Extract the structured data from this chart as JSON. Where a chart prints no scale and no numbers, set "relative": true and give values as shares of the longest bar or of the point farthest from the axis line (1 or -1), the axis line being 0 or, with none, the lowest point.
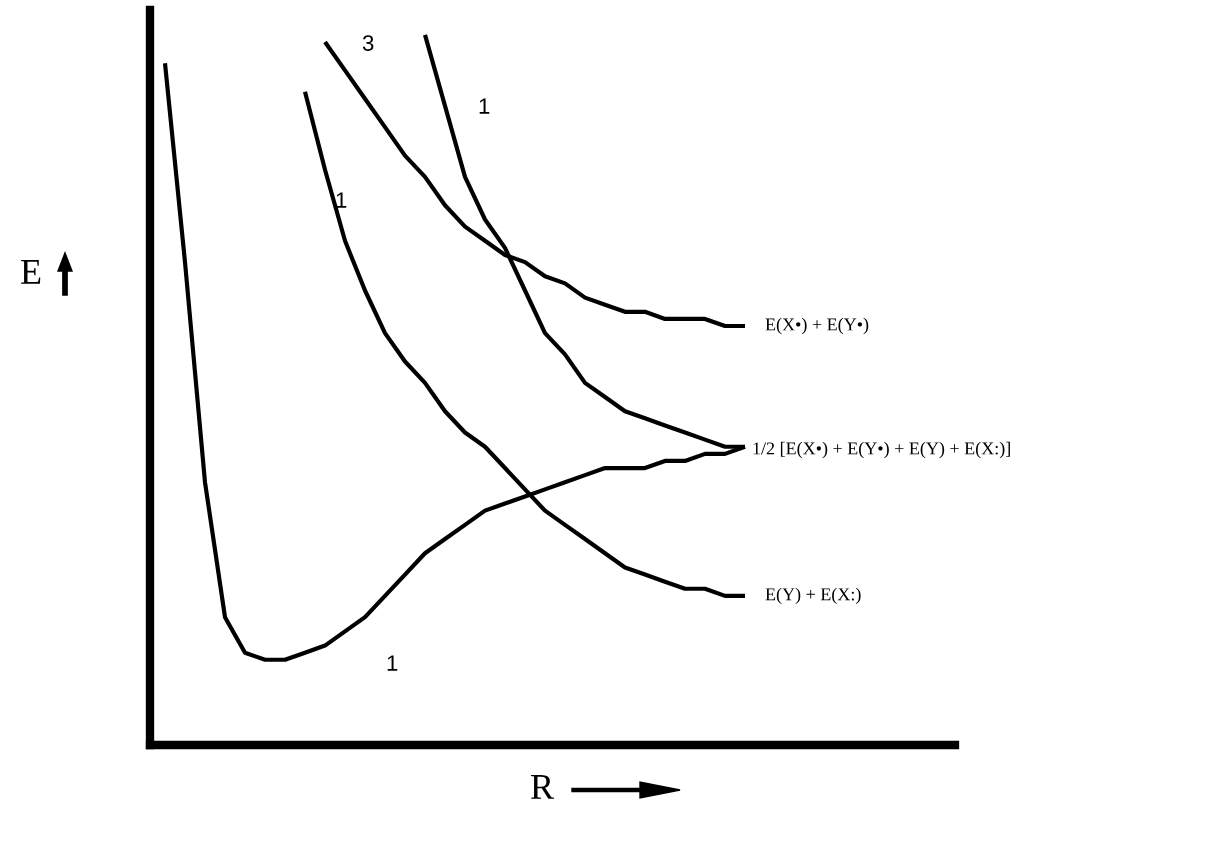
{
  "chart_data": {
    "type": "line",
    "relative": true,
    "xlabel": "R",
    "ylabel": "E",
    "legend": false,
    "marker": "none",
    "line_style": "solid",
    "categories": [
      null,
      null,
      null,
      null,
      null,
      null,
      null,
      null,
      null,
      null,
      null,
      null,
      null,
      null,
      null,
      null,
      null,
      null,
      null,
      null,
      null,
      null,
      null,
      null,
      null,
      null,
      null,
      null,
      null,
      null
    ],
    "series": [
      {
        "color": "#000000",
        "values": [
          0.96,
          0.68,
          0.37,
          0.18,
          0.13,
          0.12,
          0.12,
          0.13,
          0.14,
          0.16,
          0.18,
          0.21,
          0.24,
          0.27,
          0.29,
          0.31,
          0.33,
          0.34,
          0.35,
          0.36,
          0.37,
          0.38,
          0.39,
          0.39,
          0.39,
          0.4,
          0.4,
          0.41,
          0.41,
          0.42
        ]
      },
      {
        "name": "E(Y) + E(X:)",
        "color": "#000000",
        "values": [
          null,
          null,
          null,
          null,
          null,
          null,
          null,
          0.92,
          0.81,
          0.71,
          0.64,
          0.58,
          0.54,
          0.51,
          0.47,
          0.44,
          0.42,
          0.39,
          0.36,
          0.33,
          0.31,
          0.29,
          0.27,
          0.25,
          0.24,
          0.23,
          0.22,
          0.22,
          0.21,
          0.21
        ]
      },
      {
        "name": "E(X•) + E(Y•)",
        "color": "#000000",
        "values": [
          null,
          null,
          null,
          null,
          null,
          null,
          null,
          null,
          0.99,
          0.95,
          0.91,
          0.87,
          0.83,
          0.8,
          0.76,
          0.73,
          0.71,
          0.69,
          0.68,
          0.66,
          0.65,
          0.63,
          0.62,
          0.61,
          0.61,
          0.6,
          0.6,
          0.6,
          0.59,
          0.59
        ]
      },
      {
        "color": "#000000",
        "values": [
          null,
          null,
          null,
          null,
          null,
          null,
          null,
          null,
          null,
          null,
          null,
          null,
          null,
          1.0,
          0.9,
          0.8,
          0.74,
          0.7,
          0.64,
          0.58,
          0.55,
          0.51,
          0.49,
          0.47,
          0.46,
          0.45,
          0.44,
          0.43,
          0.42,
          0.42
        ]
      }
    ],
    "annotations": [
      "3",
      "1",
      "1",
      "1",
      "1/2 [E(X•) + E(Y•) + E(Y) + E(X:)]"
    ]
  }
}
